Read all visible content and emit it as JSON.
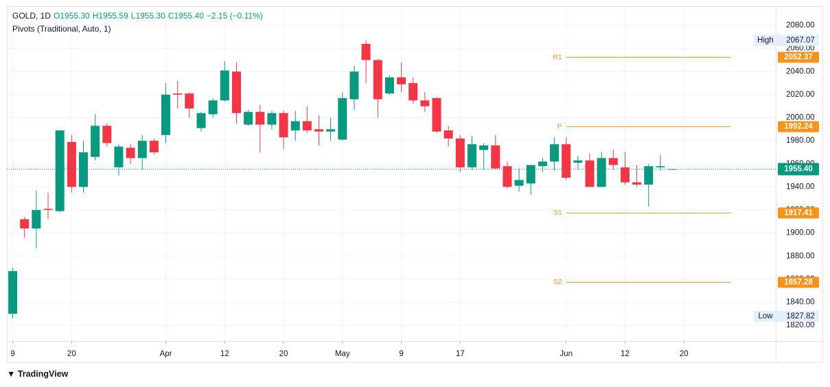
{
  "chart_data": {
    "type": "candlestick",
    "symbol": "GOLD, 1D",
    "ohlc_header": [
      "O1955.30",
      "H1955.59",
      "L1955.30",
      "C1955.40",
      "−2.15 (−0.11%)"
    ],
    "indicator": "Pivots (Traditional, Auto, 1)",
    "open": [
      1830,
      1912,
      1904,
      1921,
      1919,
      1979,
      1940,
      1966,
      1993,
      1957,
      1974,
      1965,
      1980,
      1985,
      2021,
      2021,
      1991,
      2003,
      2015,
      2040,
      1994,
      2005,
      1994,
      2004,
      1989,
      1997,
      1990,
      1988,
      1981,
      2016,
      2064,
      2050,
      2021,
      2035,
      2030,
      2015,
      2017,
      1989,
      1982,
      1957,
      1972,
      1976,
      1958,
      1941,
      1943,
      1958,
      1962,
      1977,
      1961,
      1963,
      1940,
      1965,
      1957,
      1944,
      1942,
      1957,
      1955.3
    ],
    "high": [
      1870,
      1914,
      1937,
      1935,
      1989,
      1985,
      1980,
      2003,
      1995,
      1977,
      1977,
      1985,
      1982,
      2030,
      2032,
      2022,
      2005,
      2017,
      2049,
      2048,
      2007,
      2011,
      2006,
      2006,
      2006,
      2010,
      2002,
      2000,
      2022,
      2045,
      2067,
      2051,
      2037,
      2048,
      2035,
      2022,
      2018,
      1993,
      1985,
      1984,
      1978,
      1985,
      1962,
      1956,
      1959,
      1965,
      1983,
      1983,
      1967,
      1969,
      1970,
      1972,
      1970,
      1959,
      1960,
      1968,
      1955.59
    ],
    "low": [
      1826,
      1896,
      1887,
      1912,
      1918,
      1935,
      1935,
      1963,
      1975,
      1950,
      1960,
      1955,
      1968,
      1978,
      2008,
      2000,
      1988,
      2000,
      2014,
      1995,
      1993,
      1970,
      1990,
      1973,
      1980,
      1987,
      1976,
      1980,
      1980,
      2007,
      2030,
      2000,
      2020,
      2022,
      2012,
      2005,
      1987,
      1975,
      1953,
      1955,
      1955,
      1955,
      1939,
      1936,
      1933,
      1953,
      1954,
      1946,
      1955,
      1940,
      1940,
      1955,
      1942,
      1940,
      1923,
      1954,
      1955.3
    ],
    "close": [
      1867,
      1904,
      1920,
      1920,
      1989,
      1940,
      1970,
      1993,
      1978,
      1975,
      1965,
      1980,
      1970,
      2020,
      2020,
      2008,
      2004,
      2015,
      2041,
      2004,
      2005,
      1994,
      2004,
      1983,
      1997,
      1989,
      1988,
      1990,
      2017,
      2040,
      2050,
      2016,
      2035,
      2029,
      2015,
      2010,
      1988,
      1982,
      1957,
      1977,
      1976,
      1956,
      1940,
      1946,
      1959,
      1962,
      1977,
      1948,
      1963,
      1940,
      1965,
      1959,
      1944,
      1942,
      1958,
      1958,
      1955.4
    ],
    "up_color": "#089981",
    "down_color": "#f23645",
    "xlim": [
      -0.5,
      64.8
    ],
    "xticks": [
      {
        "value": 0,
        "label": "9"
      },
      {
        "value": 5,
        "label": "20"
      },
      {
        "value": 13,
        "label": "Apr"
      },
      {
        "value": 18,
        "label": "12"
      },
      {
        "value": 23,
        "label": "20"
      },
      {
        "value": 28,
        "label": "May"
      },
      {
        "value": 33,
        "label": "9"
      },
      {
        "value": 38,
        "label": "17"
      },
      {
        "value": 47,
        "label": "Jun"
      },
      {
        "value": 52,
        "label": "12"
      },
      {
        "value": 57,
        "label": "20"
      }
    ],
    "ylim": [
      1806.4,
      2096.1
    ],
    "yticks": [
      {
        "value": 1820,
        "label": "1820.00"
      },
      {
        "value": 1840,
        "label": "1840.00"
      },
      {
        "value": 1860,
        "label": "1860.00"
      },
      {
        "value": 1880,
        "label": "1880.00"
      },
      {
        "value": 1900,
        "label": "1900.00"
      },
      {
        "value": 1920,
        "label": "1920.00"
      },
      {
        "value": 1940,
        "label": "1940.00"
      },
      {
        "value": 1960,
        "label": "1960.00"
      },
      {
        "value": 1980,
        "label": "1980.00"
      },
      {
        "value": 2000,
        "label": "2000.00"
      },
      {
        "value": 2020,
        "label": "2020.00"
      },
      {
        "value": 2040,
        "label": "2040.00"
      },
      {
        "value": 2060,
        "label": "2060.00"
      },
      {
        "value": 2080,
        "label": "2080.00"
      }
    ],
    "grid": true,
    "pivots": [
      {
        "name": "R1",
        "value": 2052.37
      },
      {
        "name": "P",
        "value": 1992.24
      },
      {
        "name": "S1",
        "value": 1917.41
      },
      {
        "name": "S2",
        "value": 1857.28
      }
    ],
    "pivot_color": "#f7931a",
    "last_price": {
      "value": 1955.4,
      "label": "1955.40"
    },
    "high_marker": {
      "name": "High",
      "value": 2067.07
    },
    "low_marker": {
      "name": "Low",
      "value": 1827.82
    },
    "brand": "TradingView"
  }
}
